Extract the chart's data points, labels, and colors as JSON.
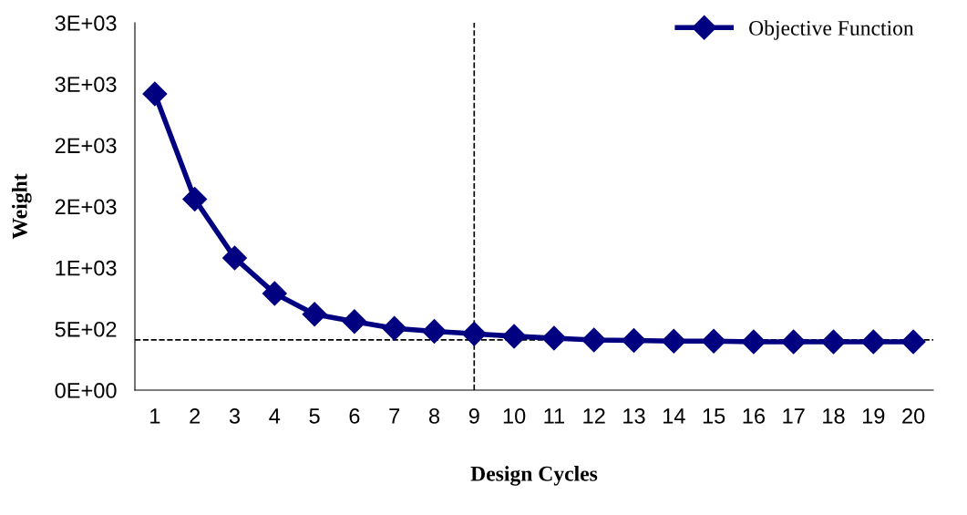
{
  "chart_data": {
    "type": "line",
    "xlabel": "Design Cycles",
    "ylabel": "Weight",
    "x": [
      1,
      2,
      3,
      4,
      5,
      6,
      7,
      8,
      9,
      10,
      11,
      12,
      13,
      14,
      15,
      16,
      17,
      18,
      19,
      20
    ],
    "series": [
      {
        "name": "Objective Function",
        "color": "#000080",
        "values": [
          2420,
          1560,
          1080,
          790,
          620,
          560,
          505,
          480,
          460,
          440,
          425,
          410,
          405,
          400,
          400,
          395,
          395,
          395,
          395,
          395
        ]
      }
    ],
    "xlim": [
      0.5,
      20.5
    ],
    "xticks": [
      1,
      2,
      3,
      4,
      5,
      6,
      7,
      8,
      9,
      10,
      11,
      12,
      13,
      14,
      15,
      16,
      17,
      18,
      19,
      20
    ],
    "ylim": [
      0,
      3000
    ],
    "yticks": [
      {
        "value": 0,
        "label": "0E+00"
      },
      {
        "value": 500,
        "label": "5E+02"
      },
      {
        "value": 1000,
        "label": "1E+03"
      },
      {
        "value": 1500,
        "label": "2E+03"
      },
      {
        "value": 2000,
        "label": "2E+03"
      },
      {
        "value": 2500,
        "label": "3E+03"
      },
      {
        "value": 3000,
        "label": "3E+03"
      }
    ],
    "ref_lines": [
      {
        "axis": "y",
        "value": 410,
        "color": "#000000",
        "line_style": "dashed"
      },
      {
        "axis": "x",
        "value": 9,
        "color": "#000000",
        "line_style": "dashed"
      }
    ],
    "marker": "diamond",
    "line_style": "solid",
    "legend": "top right",
    "grid": false
  }
}
